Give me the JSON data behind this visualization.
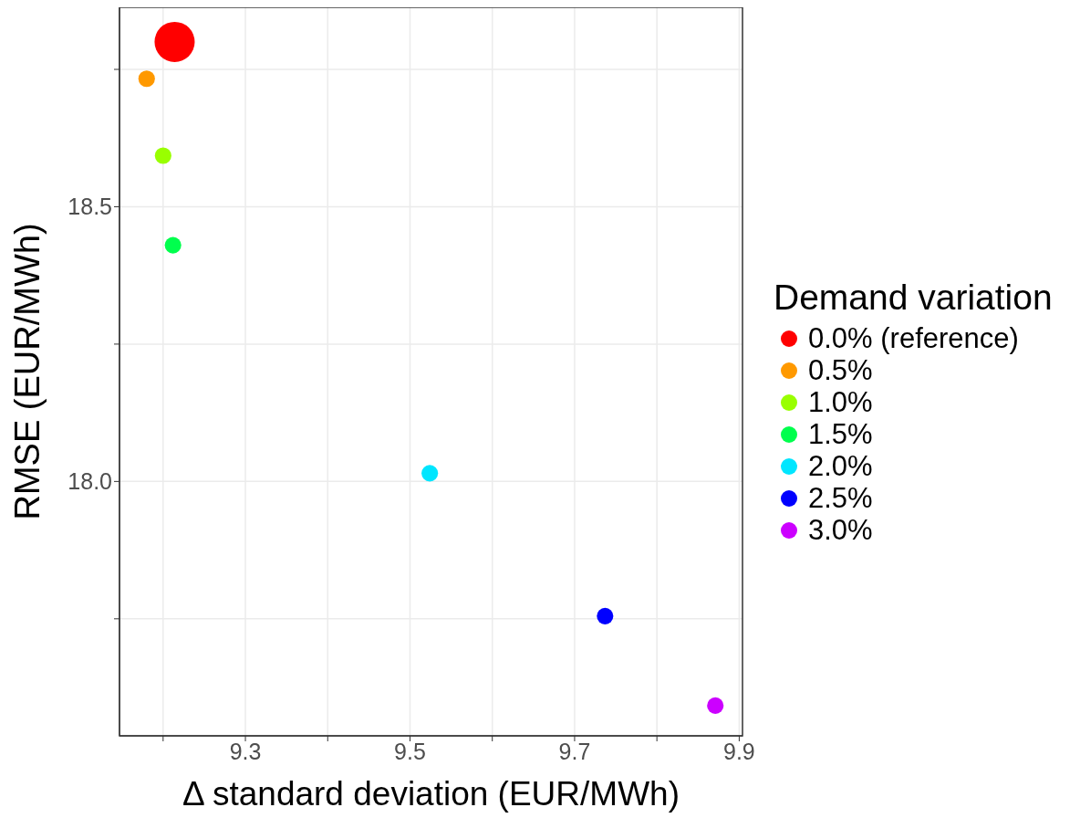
{
  "chart_data": {
    "type": "bubble",
    "xlabel": "Δ standard deviation (EUR/MWh)",
    "ylabel": "RMSE (EUR/MWh)",
    "legend_title": "Demand variation",
    "xlim": [
      9.147,
      9.904
    ],
    "ylim": [
      17.537,
      18.863
    ],
    "xticks": [
      {
        "value": 9.2,
        "label": null
      },
      9.3,
      {
        "value": 9.4,
        "label": null
      },
      9.5,
      {
        "value": 9.6,
        "label": null
      },
      9.7,
      {
        "value": 9.8,
        "label": null
      },
      9.9
    ],
    "yticks": [
      {
        "value": 17.75,
        "label": null
      },
      {
        "value": 18,
        "label": "18.0"
      },
      {
        "value": 18.25,
        "label": null
      },
      18.5,
      {
        "value": 18.75,
        "label": null
      }
    ],
    "grid": true,
    "legend": "right",
    "marker": "circle",
    "series": [
      {
        "name": "0.0% (reference)",
        "color": "#ff0000",
        "x": [
          9.214
        ],
        "values": [
          18.8
        ],
        "sizes": [
          1
        ]
      },
      {
        "name": "0.5%",
        "color": "#ff9900",
        "x": [
          9.18
        ],
        "values": [
          18.733
        ],
        "sizes": [
          0.17
        ]
      },
      {
        "name": "1.0%",
        "color": "#99ff00",
        "x": [
          9.2
        ],
        "values": [
          18.593
        ],
        "sizes": [
          0.17
        ]
      },
      {
        "name": "1.5%",
        "color": "#00ff4d",
        "x": [
          9.212
        ],
        "values": [
          18.43
        ],
        "sizes": [
          0.17
        ]
      },
      {
        "name": "2.0%",
        "color": "#00e6ff",
        "x": [
          9.524
        ],
        "values": [
          18.015
        ],
        "sizes": [
          0.17
        ]
      },
      {
        "name": "2.5%",
        "color": "#0000ff",
        "x": [
          9.737
        ],
        "values": [
          17.755
        ],
        "sizes": [
          0.17
        ]
      },
      {
        "name": "3.0%",
        "color": "#cc00ff",
        "x": [
          9.871
        ],
        "values": [
          17.592
        ],
        "sizes": [
          0.17
        ]
      }
    ]
  }
}
